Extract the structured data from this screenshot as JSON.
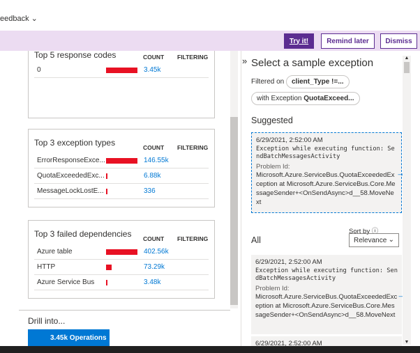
{
  "header": {
    "feedback": "eedback"
  },
  "banner": {
    "buttons": [
      "Try it!",
      "Remind later",
      "Dismiss"
    ]
  },
  "panels": [
    {
      "title": "Top 5 response codes",
      "columns": [
        "COUNT",
        "FILTERING"
      ],
      "rows": [
        {
          "name": "0",
          "count": "3.45k"
        }
      ]
    },
    {
      "title": "Top 3 exception types",
      "columns": [
        "COUNT",
        "FILTERING"
      ],
      "rows": [
        {
          "name": "ErrorResponseExce...",
          "count": "146.55k"
        },
        {
          "name": "QuotaExceededExc...",
          "count": "6.88k"
        },
        {
          "name": "MessageLockLostE...",
          "count": "336"
        }
      ]
    },
    {
      "title": "Top 3 failed dependencies",
      "columns": [
        "COUNT",
        "FILTERING"
      ],
      "rows": [
        {
          "name": "Azure table",
          "count": "402.56k"
        },
        {
          "name": "HTTP",
          "count": "73.29k"
        },
        {
          "name": "Azure Service Bus",
          "count": "3.48k"
        }
      ]
    }
  ],
  "drill": {
    "label": "Drill into...",
    "button": "3.45k Operations"
  },
  "samples": {
    "title": "Select a sample exception",
    "filtered_on": "Filtered on",
    "filters": [
      {
        "prefix": "",
        "value": "client_Type !=..."
      },
      {
        "prefix": "with Exception",
        "value": "QuotaExceed..."
      }
    ],
    "suggested": "Suggested",
    "sort_by": "Sort by",
    "sort_value": "Relevance",
    "all": "All",
    "items": [
      {
        "date": "6/29/2021, 2:52:00 AM",
        "message": "Exception while executing function: SendBatchMessagesActivity",
        "problem_label": "Problem Id:",
        "problem_id": "Microsoft.Azure.ServiceBus.QuotaExceededException at Microsoft.Azure.ServiceBus.Core.MessageSender+<OnSendAsync>d__58.MoveNext"
      },
      {
        "date": "6/29/2021, 2:52:00 AM",
        "message": "Exception while executing function: SendBatchMessagesActivity",
        "problem_label": "Problem Id:",
        "problem_id": "Microsoft.Azure.ServiceBus.QuotaExceededException at Microsoft.Azure.ServiceBus.Core.MessageSender+<OnSendAsync>d__58.MoveNext"
      },
      {
        "date": "6/29/2021, 2:52:00 AM"
      }
    ]
  }
}
